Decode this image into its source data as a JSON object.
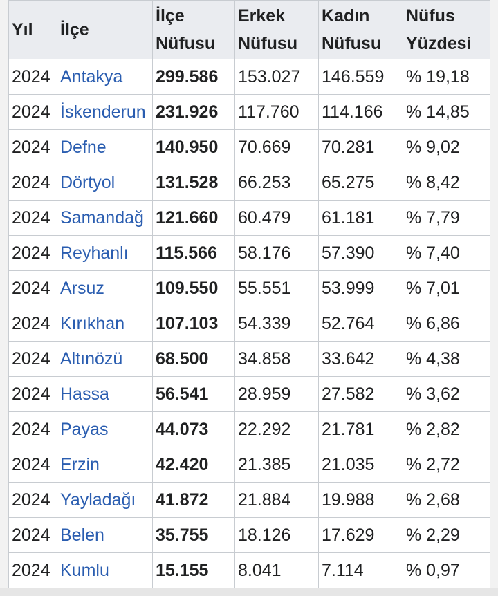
{
  "table": {
    "headers": {
      "year": "Yıl",
      "district": "İlçe",
      "total": [
        "İlçe",
        "Nüfusu"
      ],
      "male": [
        "Erkek",
        "Nüfusu"
      ],
      "female": [
        "Kadın",
        "Nüfusu"
      ],
      "percent": [
        "Nüfus",
        "Yüzdesi"
      ]
    },
    "rows": [
      {
        "year": "2024",
        "district": "Antakya",
        "total": "299.586",
        "male": "153.027",
        "female": "146.559",
        "percent": "% 19,18"
      },
      {
        "year": "2024",
        "district": "İskenderun",
        "total": "231.926",
        "male": "117.760",
        "female": "114.166",
        "percent": "% 14,85"
      },
      {
        "year": "2024",
        "district": "Defne",
        "total": "140.950",
        "male": "70.669",
        "female": "70.281",
        "percent": "% 9,02"
      },
      {
        "year": "2024",
        "district": "Dörtyol",
        "total": "131.528",
        "male": "66.253",
        "female": "65.275",
        "percent": "% 8,42"
      },
      {
        "year": "2024",
        "district": "Samandağ",
        "total": "121.660",
        "male": "60.479",
        "female": "61.181",
        "percent": "% 7,79"
      },
      {
        "year": "2024",
        "district": "Reyhanlı",
        "total": "115.566",
        "male": "58.176",
        "female": "57.390",
        "percent": "% 7,40"
      },
      {
        "year": "2024",
        "district": "Arsuz",
        "total": "109.550",
        "male": "55.551",
        "female": "53.999",
        "percent": "% 7,01"
      },
      {
        "year": "2024",
        "district": "Kırıkhan",
        "total": "107.103",
        "male": "54.339",
        "female": "52.764",
        "percent": "% 6,86"
      },
      {
        "year": "2024",
        "district": "Altınözü",
        "total": "68.500",
        "male": "34.858",
        "female": "33.642",
        "percent": "% 4,38"
      },
      {
        "year": "2024",
        "district": "Hassa",
        "total": "56.541",
        "male": "28.959",
        "female": "27.582",
        "percent": "% 3,62"
      },
      {
        "year": "2024",
        "district": "Payas",
        "total": "44.073",
        "male": "22.292",
        "female": "21.781",
        "percent": "% 2,82"
      },
      {
        "year": "2024",
        "district": "Erzin",
        "total": "42.420",
        "male": "21.385",
        "female": "21.035",
        "percent": "% 2,72"
      },
      {
        "year": "2024",
        "district": "Yayladağı",
        "total": "41.872",
        "male": "21.884",
        "female": "19.988",
        "percent": "% 2,68"
      },
      {
        "year": "2024",
        "district": "Belen",
        "total": "35.755",
        "male": "18.126",
        "female": "17.629",
        "percent": "% 2,29"
      },
      {
        "year": "2024",
        "district": "Kumlu",
        "total": "15.155",
        "male": "8.041",
        "female": "7.114",
        "percent": "% 0,97"
      }
    ]
  },
  "colors": {
    "link": "#2a5db0",
    "header_bg": "#eaecf0",
    "border": "#c8ccd1",
    "text": "#202122"
  }
}
